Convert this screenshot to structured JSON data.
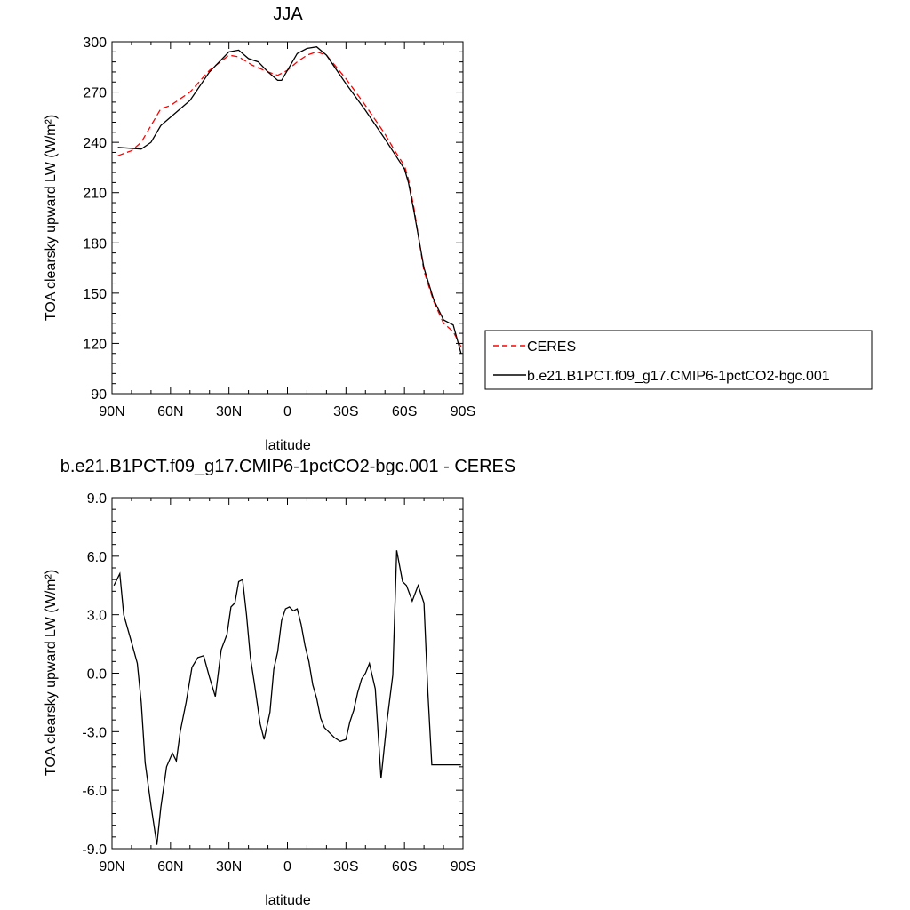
{
  "chart_data": [
    {
      "type": "line",
      "title": "JJA",
      "xlabel": "latitude",
      "ylabel": "TOA clearsky upward LW (W/m²)",
      "ylim": [
        90,
        300
      ],
      "xlim": [
        90,
        -90
      ],
      "yticks": [
        90,
        120,
        150,
        180,
        210,
        240,
        270,
        300
      ],
      "xticks": [
        90,
        60,
        30,
        0,
        -30,
        -60,
        -90
      ],
      "xtick_labels": [
        "90N",
        "60N",
        "30N",
        "0",
        "30S",
        "60S",
        "90S"
      ],
      "legend_position": "right",
      "series": [
        {
          "name": "CERES",
          "color": "#ff0000",
          "dash": "dashed",
          "x": [
            87,
            80,
            75,
            65,
            60,
            50,
            40,
            30,
            25,
            18,
            10,
            5,
            0,
            -5,
            -10,
            -15,
            -20,
            -30,
            -40,
            -50,
            -55,
            -60,
            -62,
            -65,
            -70,
            -75,
            -80,
            -85,
            -89
          ],
          "y": [
            232,
            235,
            240,
            260,
            262,
            270,
            283,
            292,
            291,
            286,
            282,
            280,
            283,
            288,
            292,
            294,
            292,
            278,
            262,
            245,
            235,
            226,
            218,
            200,
            163,
            145,
            132,
            127,
            118
          ]
        },
        {
          "name": "b.e21.B1PCT.f09_g17.CMIP6-1pctCO2-bgc.001",
          "color": "#000000",
          "dash": "solid",
          "x": [
            87,
            75,
            70,
            65,
            60,
            50,
            40,
            30,
            25,
            20,
            15,
            10,
            5,
            3,
            0,
            -5,
            -10,
            -15,
            -20,
            -30,
            -40,
            -50,
            -55,
            -60,
            -62,
            -65,
            -70,
            -75,
            -80,
            -85,
            -89
          ],
          "y": [
            237,
            236,
            240,
            250,
            255,
            265,
            282,
            294,
            295,
            290,
            288,
            282,
            277,
            277,
            283,
            293,
            296,
            297,
            292,
            275,
            259,
            242,
            233,
            224,
            216,
            198,
            165,
            146,
            134,
            131,
            114
          ]
        }
      ]
    },
    {
      "type": "line",
      "title": "b.e21.B1PCT.f09_g17.CMIP6-1pctCO2-bgc.001 - CERES",
      "xlabel": "latitude",
      "ylabel": "TOA clearsky upward LW (W/m²)",
      "ylim": [
        -9,
        9
      ],
      "xlim": [
        90,
        -90
      ],
      "yticks": [
        -9,
        -6,
        -3,
        0,
        3,
        6,
        9
      ],
      "ytick_labels": [
        "-9.0",
        "-6.0",
        "-3.0",
        "0.0",
        "3.0",
        "6.0",
        "9.0"
      ],
      "xticks": [
        90,
        60,
        30,
        0,
        -30,
        -60,
        -90
      ],
      "xtick_labels": [
        "90N",
        "60N",
        "30N",
        "0",
        "30S",
        "60S",
        "90S"
      ],
      "series": [
        {
          "color": "#000000",
          "x": [
            89,
            86,
            84,
            80,
            77,
            75,
            73,
            70,
            67,
            65,
            62,
            59,
            57,
            55,
            52,
            49,
            46,
            43,
            40,
            37,
            34,
            31,
            29,
            27,
            25,
            23,
            21,
            19,
            17,
            14,
            12,
            9,
            7,
            5,
            3,
            1,
            -1,
            -3,
            -5,
            -7,
            -9,
            -11,
            -13,
            -15,
            -17,
            -19,
            -21,
            -24,
            -27,
            -30,
            -32,
            -34,
            -36,
            -38,
            -40,
            -42,
            -45,
            -48,
            -51,
            -54,
            -56,
            -59,
            -61,
            -64,
            -67,
            -70,
            -72,
            -74,
            -76,
            -78,
            -80,
            -83,
            -86,
            -89
          ],
          "y": [
            4.5,
            5.1,
            3.0,
            1.6,
            0.5,
            -1.5,
            -4.6,
            -6.8,
            -8.8,
            -6.9,
            -4.8,
            -4.1,
            -4.5,
            -3.0,
            -1.5,
            0.3,
            0.8,
            0.9,
            -0.2,
            -1.2,
            1.2,
            2.0,
            3.4,
            3.6,
            4.7,
            4.8,
            3.0,
            0.8,
            -0.5,
            -2.6,
            -3.4,
            -2.0,
            0.2,
            1.1,
            2.7,
            3.3,
            3.4,
            3.2,
            3.3,
            2.5,
            1.4,
            0.6,
            -0.6,
            -1.3,
            -2.3,
            -2.8,
            -3.0,
            -3.3,
            -3.5,
            -3.4,
            -2.5,
            -1.9,
            -1.0,
            -0.3,
            0.0,
            0.5,
            -0.8,
            -5.4,
            -2.5,
            -0.1,
            6.3,
            4.7,
            4.5,
            3.7,
            4.5,
            3.6,
            -1.0,
            -4.7,
            -4.7,
            -4.7,
            -4.7,
            -4.7,
            -4.7,
            -4.7
          ]
        }
      ]
    }
  ]
}
